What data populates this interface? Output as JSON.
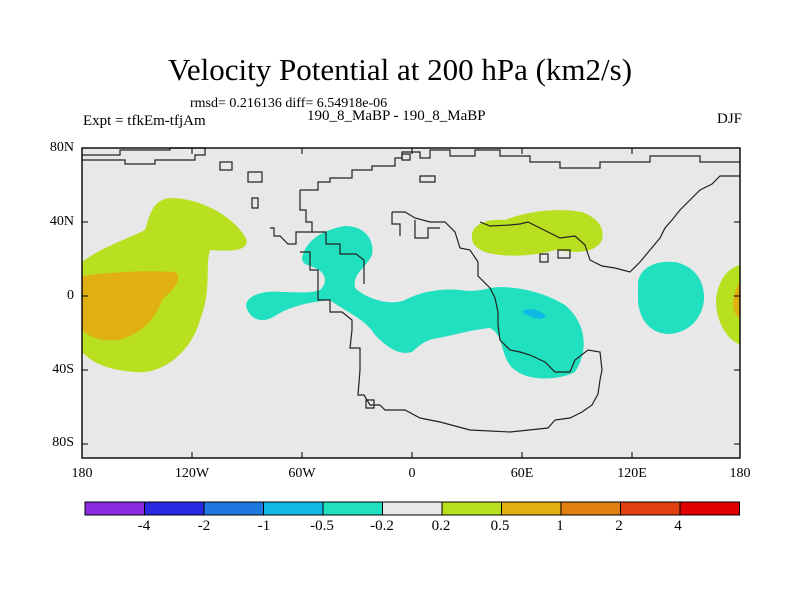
{
  "title": "Velocity Potential at 200 hPa (km2/s)",
  "stats_line": "rmsd= 0.216136 diff= 6.54918e-06",
  "experiment_line": "Expt = tfkEm-tfjAm",
  "cases_line": "190_8_MaBP - 190_8_MaBP",
  "season": "DJF",
  "lat_ticks": [
    "80N",
    "40N",
    "0",
    "40S",
    "80S"
  ],
  "lon_ticks": [
    "180",
    "120W",
    "60W",
    "0",
    "60E",
    "120E",
    "180"
  ],
  "colorbar": {
    "colors": [
      "#8a2be2",
      "#2828e0",
      "#1e78e0",
      "#10b8e6",
      "#20e0c0",
      "#e8e8e8",
      "#b8e020",
      "#e0b010",
      "#e08010",
      "#e04010",
      "#e00000"
    ],
    "labels": [
      "-4",
      "-2",
      "-1",
      "-0.5",
      "-0.2",
      "0.2",
      "0.5",
      "1",
      "2",
      "4"
    ]
  },
  "colors": {
    "background": "#e8e8e8",
    "negative": "#20e0c0",
    "negative_strong": "#10b8e6",
    "positive": "#b8e020",
    "positive_strong": "#e0b010"
  }
}
